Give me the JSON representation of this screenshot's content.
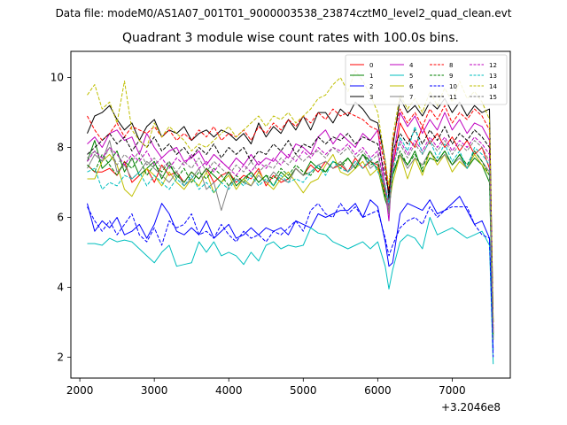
{
  "suptitle": "Data file: modeM0/AS1A07_001T01_9000003538_23874cztM0_level2_quad_clean.evt",
  "chart_data": {
    "type": "line",
    "title": "Quadrant 3 module wise count rates with 100.0s bins.",
    "xlabel": "",
    "ylabel": "",
    "x_offset_label": "+3.2046e8",
    "xlim": [
      1880,
      7780
    ],
    "ylim": [
      1.4,
      10.75
    ],
    "xticks": [
      2000,
      3000,
      4000,
      5000,
      6000,
      7000
    ],
    "yticks": [
      2,
      4,
      6,
      8,
      10
    ],
    "x": [
      2100,
      2200,
      2300,
      2400,
      2500,
      2600,
      2700,
      2800,
      2900,
      3000,
      3100,
      3200,
      3300,
      3400,
      3500,
      3600,
      3700,
      3800,
      3900,
      4000,
      4100,
      4200,
      4300,
      4400,
      4500,
      4600,
      4700,
      4800,
      4900,
      5000,
      5100,
      5200,
      5300,
      5400,
      5500,
      5600,
      5700,
      5800,
      5900,
      6000,
      6100,
      6150,
      6200,
      6300,
      6400,
      6500,
      6600,
      6700,
      6800,
      6900,
      7000,
      7100,
      7200,
      7300,
      7400,
      7500,
      7550
    ],
    "legend_loc": "upper right",
    "series": [
      {
        "name": "0",
        "color": "#ff0000",
        "style": "solid",
        "values": [
          7.5,
          7.3,
          7.3,
          7.4,
          7.2,
          7.6,
          7.0,
          7.2,
          7.4,
          7.0,
          7.5,
          7.2,
          7.3,
          7.0,
          7.3,
          7.1,
          7.4,
          7.0,
          7.2,
          7.3,
          7.0,
          7.2,
          7.1,
          7.4,
          6.9,
          7.2,
          7.0,
          7.1,
          7.4,
          7.2,
          7.5,
          7.3,
          7.6,
          7.4,
          7.5,
          7.3,
          7.7,
          7.4,
          7.6,
          7.5,
          6.7,
          6.1,
          7.4,
          8.7,
          8.3,
          8.0,
          8.6,
          8.1,
          8.4,
          8.0,
          8.3,
          7.9,
          8.2,
          7.8,
          8.0,
          7.4,
          2.7
        ]
      },
      {
        "name": "1",
        "color": "#008000",
        "style": "solid",
        "values": [
          7.6,
          8.2,
          7.4,
          7.6,
          7.9,
          7.3,
          7.7,
          7.2,
          7.4,
          7.6,
          7.1,
          7.5,
          7.2,
          7.0,
          7.3,
          7.1,
          7.4,
          7.2,
          7.0,
          7.3,
          6.9,
          7.1,
          7.3,
          7.0,
          7.2,
          6.9,
          7.3,
          7.1,
          7.4,
          7.2,
          7.6,
          7.4,
          7.3,
          7.6,
          7.5,
          7.7,
          7.4,
          7.8,
          7.6,
          7.4,
          6.5,
          6.2,
          7.2,
          7.8,
          7.5,
          7.9,
          7.3,
          7.7,
          7.6,
          7.9,
          7.5,
          7.8,
          7.4,
          7.7,
          7.5,
          7.0,
          2.5
        ]
      },
      {
        "name": "2",
        "color": "#0000ff",
        "style": "solid",
        "values": [
          6.4,
          5.6,
          5.9,
          5.7,
          6.0,
          5.5,
          5.6,
          5.8,
          5.4,
          5.8,
          6.4,
          6.1,
          5.6,
          5.5,
          5.7,
          5.5,
          5.9,
          5.4,
          5.6,
          5.8,
          5.4,
          5.5,
          5.7,
          5.5,
          5.7,
          5.6,
          5.7,
          5.5,
          5.9,
          5.8,
          5.7,
          6.1,
          6.0,
          6.1,
          6.2,
          6.2,
          6.4,
          6.0,
          6.5,
          6.3,
          5.3,
          4.6,
          4.7,
          6.1,
          6.4,
          6.3,
          6.2,
          6.5,
          6.1,
          6.2,
          6.4,
          6.6,
          6.2,
          5.8,
          5.9,
          5.4,
          2.2
        ]
      },
      {
        "name": "3",
        "color": "#000000",
        "style": "solid",
        "values": [
          8.4,
          8.9,
          9.0,
          9.2,
          8.8,
          8.5,
          8.7,
          8.2,
          8.6,
          8.8,
          8.3,
          8.5,
          8.4,
          8.6,
          8.2,
          8.4,
          8.5,
          8.3,
          8.5,
          8.4,
          8.2,
          8.4,
          8.1,
          8.7,
          8.3,
          8.6,
          8.4,
          8.8,
          8.5,
          8.9,
          8.5,
          9.0,
          9.0,
          8.7,
          9.1,
          8.9,
          9.3,
          9.1,
          8.8,
          8.7,
          7.6,
          6.5,
          8.0,
          9.4,
          9.0,
          9.2,
          8.9,
          9.3,
          9.1,
          9.4,
          9.0,
          9.3,
          8.9,
          9.2,
          9.0,
          9.1,
          3.0
        ]
      },
      {
        "name": "4",
        "color": "#bf00bf",
        "style": "solid",
        "values": [
          8.1,
          8.3,
          8.0,
          8.4,
          8.5,
          8.2,
          8.3,
          7.8,
          8.4,
          8.0,
          7.7,
          7.9,
          8.0,
          7.6,
          7.7,
          7.9,
          7.5,
          7.8,
          7.6,
          7.4,
          7.7,
          7.5,
          7.8,
          7.5,
          7.7,
          7.6,
          7.9,
          7.7,
          8.1,
          8.0,
          7.8,
          8.3,
          8.5,
          8.1,
          8.4,
          8.2,
          8.0,
          8.4,
          8.2,
          8.5,
          6.8,
          5.9,
          7.6,
          9.0,
          8.6,
          8.9,
          8.4,
          8.8,
          8.5,
          9.0,
          8.5,
          8.8,
          8.4,
          8.7,
          8.6,
          8.2,
          2.7
        ]
      },
      {
        "name": "5",
        "color": "#00bfbf",
        "style": "solid",
        "values": [
          5.25,
          5.25,
          5.2,
          5.4,
          5.3,
          5.35,
          5.3,
          5.1,
          4.9,
          4.7,
          5.0,
          5.2,
          4.6,
          4.65,
          4.7,
          5.3,
          5.0,
          5.3,
          4.9,
          5.0,
          4.9,
          4.65,
          5.0,
          4.75,
          5.2,
          5.3,
          5.1,
          5.2,
          5.15,
          5.2,
          5.7,
          5.55,
          5.5,
          5.3,
          5.2,
          5.1,
          5.2,
          5.3,
          5.1,
          5.3,
          4.6,
          3.95,
          4.5,
          5.3,
          5.5,
          5.4,
          5.1,
          6.0,
          5.5,
          5.6,
          5.7,
          5.55,
          5.4,
          5.5,
          5.6,
          5.2,
          1.8
        ]
      },
      {
        "name": "6",
        "color": "#bfbf00",
        "style": "solid",
        "values": [
          7.1,
          7.1,
          7.6,
          7.8,
          7.5,
          6.8,
          6.6,
          7.0,
          7.4,
          7.2,
          6.9,
          7.3,
          7.0,
          6.8,
          7.1,
          6.9,
          7.3,
          6.7,
          7.0,
          7.2,
          6.8,
          7.1,
          6.9,
          7.3,
          7.0,
          6.8,
          7.1,
          7.3,
          7.0,
          6.7,
          7.0,
          7.1,
          7.5,
          7.8,
          7.3,
          7.2,
          7.4,
          7.6,
          7.2,
          7.4,
          6.6,
          6.3,
          7.0,
          7.8,
          7.1,
          7.7,
          7.2,
          7.9,
          7.5,
          7.8,
          7.3,
          7.6,
          7.4,
          7.8,
          7.5,
          7.2,
          2.6
        ]
      },
      {
        "name": "7",
        "color": "#808080",
        "style": "solid",
        "values": [
          7.4,
          7.8,
          7.6,
          8.2,
          7.3,
          7.5,
          7.1,
          7.3,
          7.6,
          7.4,
          7.2,
          7.0,
          7.3,
          6.9,
          7.1,
          7.4,
          6.8,
          7.0,
          6.2,
          6.9,
          7.1,
          7.0,
          6.9,
          7.2,
          7.0,
          7.3,
          7.1,
          7.0,
          7.4,
          7.2,
          7.3,
          7.5,
          7.6,
          7.4,
          7.6,
          7.3,
          7.5,
          7.8,
          7.4,
          7.6,
          6.8,
          6.1,
          7.3,
          7.8,
          7.4,
          7.7,
          7.5,
          7.9,
          7.6,
          7.8,
          7.5,
          7.7,
          7.4,
          7.9,
          7.6,
          7.3,
          2.5
        ]
      },
      {
        "name": "8",
        "color": "#ff0000",
        "style": "dashed",
        "values": [
          8.9,
          8.5,
          8.2,
          8.4,
          8.7,
          8.3,
          8.6,
          8.5,
          8.4,
          8.6,
          8.3,
          8.5,
          8.2,
          8.4,
          8.2,
          8.5,
          8.3,
          8.6,
          8.2,
          8.4,
          8.3,
          8.5,
          8.2,
          8.6,
          8.4,
          8.7,
          8.5,
          8.8,
          8.6,
          8.9,
          8.7,
          9.0,
          8.8,
          9.1,
          8.9,
          9.0,
          8.9,
          8.8,
          8.6,
          8.5,
          7.4,
          6.8,
          8.2,
          9.1,
          8.7,
          9.0,
          8.6,
          9.1,
          8.8,
          9.2,
          8.7,
          9.0,
          8.8,
          9.1,
          8.9,
          8.5,
          2.9
        ]
      },
      {
        "name": "9",
        "color": "#008000",
        "style": "dashed",
        "values": [
          7.5,
          7.3,
          7.8,
          7.5,
          7.2,
          7.6,
          7.4,
          7.7,
          7.2,
          7.5,
          7.3,
          7.6,
          7.1,
          7.4,
          7.0,
          7.3,
          7.1,
          7.4,
          7.2,
          6.9,
          7.2,
          7.0,
          7.3,
          7.0,
          7.2,
          7.1,
          7.4,
          7.2,
          7.5,
          7.3,
          7.2,
          7.5,
          7.3,
          7.6,
          7.4,
          7.7,
          7.4,
          7.8,
          7.5,
          7.6,
          6.6,
          6.4,
          7.2,
          7.9,
          7.5,
          7.8,
          7.4,
          7.9,
          7.6,
          7.9,
          7.5,
          7.8,
          7.5,
          7.9,
          7.6,
          7.2,
          2.6
        ]
      },
      {
        "name": "10",
        "color": "#0000ff",
        "style": "dashed",
        "values": [
          6.3,
          5.9,
          5.6,
          5.9,
          5.5,
          5.8,
          6.1,
          5.5,
          5.3,
          5.7,
          5.2,
          5.9,
          5.7,
          5.8,
          6.1,
          5.5,
          5.6,
          5.4,
          5.8,
          5.5,
          5.3,
          5.6,
          5.4,
          5.5,
          5.3,
          5.6,
          5.5,
          5.7,
          5.9,
          5.6,
          6.2,
          6.4,
          6.1,
          6.0,
          6.4,
          6.1,
          6.3,
          6.0,
          6.1,
          6.2,
          5.4,
          4.9,
          5.2,
          5.7,
          5.9,
          6.0,
          5.8,
          6.3,
          6.0,
          6.2,
          6.3,
          6.3,
          6.3,
          5.8,
          5.5,
          5.4,
          2.0
        ]
      },
      {
        "name": "11",
        "color": "#000000",
        "style": "dashed",
        "values": [
          7.8,
          8.0,
          8.2,
          8.4,
          8.1,
          8.3,
          7.9,
          8.2,
          8.0,
          8.3,
          7.9,
          8.1,
          7.8,
          8.0,
          7.7,
          8.0,
          7.8,
          8.1,
          7.7,
          8.0,
          7.8,
          8.0,
          7.6,
          7.9,
          7.8,
          8.1,
          7.9,
          8.2,
          7.8,
          8.1,
          8.0,
          8.3,
          8.1,
          8.3,
          8.2,
          8.4,
          8.1,
          8.3,
          8.2,
          8.1,
          7.2,
          6.7,
          7.9,
          8.4,
          8.1,
          8.5,
          8.1,
          8.5,
          8.2,
          8.6,
          8.1,
          8.4,
          8.2,
          8.5,
          8.3,
          8.0,
          2.8
        ]
      },
      {
        "name": "12",
        "color": "#bf00bf",
        "style": "dashed",
        "values": [
          7.6,
          7.9,
          7.7,
          8.0,
          7.8,
          7.5,
          7.8,
          7.6,
          7.9,
          7.5,
          7.7,
          7.4,
          7.7,
          7.5,
          7.8,
          7.4,
          7.6,
          7.3,
          7.6,
          7.4,
          7.2,
          7.5,
          7.3,
          7.6,
          7.4,
          7.7,
          7.5,
          7.8,
          7.6,
          7.9,
          7.7,
          8.0,
          7.8,
          8.0,
          7.9,
          8.1,
          7.8,
          8.0,
          7.7,
          7.9,
          6.9,
          6.3,
          7.6,
          8.2,
          7.8,
          8.2,
          7.9,
          8.3,
          8.0,
          8.3,
          7.9,
          8.2,
          8.0,
          8.3,
          8.1,
          7.8,
          2.7
        ]
      },
      {
        "name": "13",
        "color": "#00bfbf",
        "style": "dashed",
        "values": [
          7.3,
          7.4,
          6.8,
          7.0,
          6.9,
          7.2,
          7.1,
          7.3,
          6.9,
          7.2,
          7.0,
          6.8,
          7.1,
          6.9,
          7.2,
          6.8,
          7.0,
          6.7,
          7.0,
          6.8,
          7.1,
          6.9,
          7.2,
          6.9,
          7.1,
          6.9,
          7.2,
          7.0,
          7.1,
          7.0,
          7.3,
          7.5,
          7.2,
          7.6,
          7.4,
          7.3,
          7.6,
          7.4,
          7.7,
          7.3,
          6.9,
          6.4,
          7.3,
          8.3,
          7.9,
          8.6,
          7.8,
          8.2,
          7.7,
          8.1,
          7.6,
          7.9,
          7.4,
          8.0,
          7.8,
          7.5,
          2.6
        ]
      },
      {
        "name": "14",
        "color": "#bfbf00",
        "style": "dashed",
        "values": [
          9.5,
          9.8,
          9.1,
          9.3,
          8.7,
          9.9,
          8.5,
          8.2,
          8.0,
          8.7,
          8.3,
          8.6,
          8.4,
          8.2,
          7.9,
          8.1,
          8.0,
          8.2,
          8.4,
          8.6,
          8.3,
          8.5,
          8.7,
          8.9,
          8.6,
          8.9,
          8.8,
          9.0,
          8.7,
          8.9,
          9.1,
          9.4,
          9.5,
          9.8,
          10.0,
          9.6,
          10.2,
          9.9,
          9.5,
          9.0,
          7.6,
          6.9,
          8.3,
          9.5,
          9.1,
          9.4,
          9.0,
          9.6,
          9.2,
          9.7,
          9.3,
          9.9,
          9.4,
          9.6,
          9.3,
          8.8,
          3.0
        ]
      },
      {
        "name": "15",
        "color": "#808080",
        "style": "dashed",
        "values": [
          7.7,
          7.9,
          7.6,
          8.0,
          7.5,
          7.8,
          7.6,
          7.9,
          7.5,
          7.7,
          7.4,
          7.6,
          7.3,
          7.6,
          7.4,
          7.7,
          7.3,
          7.6,
          7.4,
          7.2,
          7.5,
          7.3,
          7.6,
          7.3,
          7.5,
          7.4,
          7.7,
          7.5,
          7.8,
          7.6,
          7.8,
          7.9,
          7.7,
          8.0,
          7.8,
          8.0,
          7.7,
          7.9,
          7.6,
          7.8,
          6.8,
          6.2,
          7.5,
          8.1,
          7.7,
          8.1,
          7.8,
          8.2,
          7.9,
          8.2,
          7.8,
          8.1,
          7.9,
          8.2,
          8.0,
          7.6,
          2.6
        ]
      }
    ]
  }
}
